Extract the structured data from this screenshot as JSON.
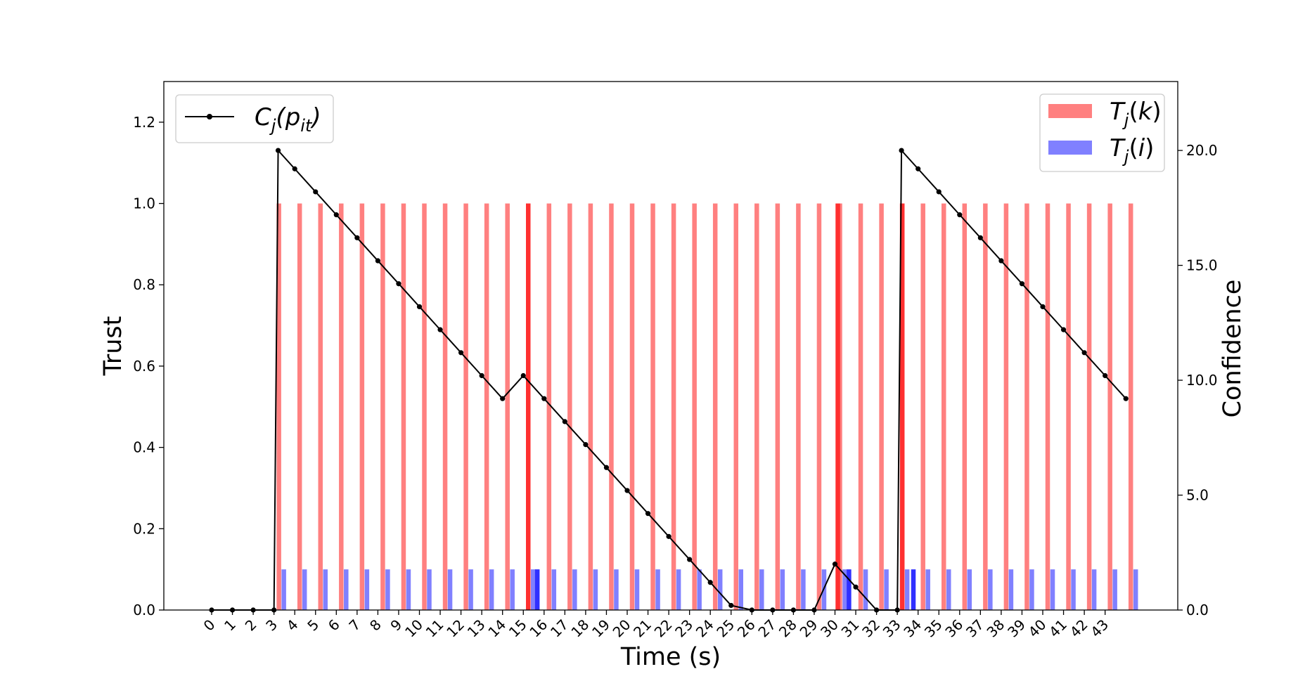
{
  "chart_data": {
    "type": "bar",
    "xlabel": "Time (s)",
    "ylabel": "Trust",
    "y2label": "Confidence",
    "ylim": [
      0,
      1.3
    ],
    "y2lim": [
      0,
      23.0
    ],
    "yticks": [
      "0.0",
      "0.2",
      "0.4",
      "0.6",
      "0.8",
      "1.0",
      "1.2"
    ],
    "y2ticks": [
      "0.0",
      "5.0",
      "10.0",
      "15.0",
      "20.0"
    ],
    "x_ticks": [
      "0",
      "1",
      "2",
      "3",
      "4",
      "5",
      "6",
      "7",
      "8",
      "9",
      "10",
      "11",
      "12",
      "13",
      "14",
      "15",
      "16",
      "17",
      "18",
      "19",
      "20",
      "21",
      "22",
      "23",
      "24",
      "25",
      "26",
      "27",
      "28",
      "29",
      "30",
      "31",
      "32",
      "33",
      "34",
      "35",
      "36",
      "37",
      "38",
      "39",
      "40",
      "41",
      "42",
      "43"
    ],
    "legend_left_placement": "top-left",
    "legend_right_placement": "top-right",
    "grid": false,
    "bar_series": [
      {
        "legend_label": "T_j(k)",
        "color": "#ff8080",
        "bar_at_tick": 3.25,
        "values": [
          0,
          0,
          0,
          1,
          1,
          1,
          1,
          1,
          1,
          1,
          1,
          1,
          1,
          1,
          1,
          1,
          1,
          1,
          1,
          1,
          1,
          1,
          1,
          1,
          1,
          1,
          1,
          1,
          1,
          1,
          1,
          1,
          1,
          1,
          1,
          1,
          1,
          1,
          1,
          1,
          1,
          1,
          1,
          1,
          1
        ]
      },
      {
        "legend_label": "T_j(i)",
        "color": "#8080ff",
        "values": [
          0,
          0,
          0,
          0.1,
          0.1,
          0.1,
          0.1,
          0.1,
          0.1,
          0.1,
          0.1,
          0.1,
          0.1,
          0.1,
          0.1,
          0.1,
          0.1,
          0.1,
          0.1,
          0.1,
          0.1,
          0.1,
          0.1,
          0.1,
          0.1,
          0.1,
          0.1,
          0.1,
          0.1,
          0.1,
          0.1,
          0.1,
          0.1,
          0.1,
          0.1,
          0.1,
          0.1,
          0.1,
          0.1,
          0.1,
          0.1,
          0.1,
          0.1,
          0.1,
          0.1
        ]
      }
    ],
    "highlight_extra": [
      {
        "color": "#ff3030",
        "x": 15.0,
        "value": 1.0
      },
      {
        "color": "#ff3030",
        "x": 29.9,
        "value": 1.0
      },
      {
        "color": "#ff3030",
        "x": 33.0,
        "value": 1.0
      },
      {
        "color": "#3030ff",
        "x": 15.2,
        "value": 0.1
      },
      {
        "color": "#3030ff",
        "x": 30.2,
        "value": 0.1
      },
      {
        "color": "#3030ff",
        "x": 33.3,
        "value": 0.1
      }
    ],
    "line_series": {
      "legend_label": "C_j(p_it)",
      "color": "#000000",
      "points": [
        [
          0,
          0
        ],
        [
          1,
          0
        ],
        [
          2,
          0
        ],
        [
          3,
          0
        ],
        [
          3.2,
          20.0
        ],
        [
          4,
          19.2
        ],
        [
          5,
          18.2
        ],
        [
          6,
          17.2
        ],
        [
          7,
          16.2
        ],
        [
          8,
          15.2
        ],
        [
          9,
          14.2
        ],
        [
          10,
          13.2
        ],
        [
          11,
          12.2
        ],
        [
          12,
          11.2
        ],
        [
          13,
          10.2
        ],
        [
          14,
          9.2
        ],
        [
          15,
          10.2
        ],
        [
          16,
          9.2
        ],
        [
          17,
          8.2
        ],
        [
          18,
          7.2
        ],
        [
          19,
          6.2
        ],
        [
          20,
          5.2
        ],
        [
          21,
          4.2
        ],
        [
          22,
          3.2
        ],
        [
          23,
          2.2
        ],
        [
          24,
          1.2
        ],
        [
          25,
          0.2
        ],
        [
          26,
          0
        ],
        [
          27,
          0
        ],
        [
          28,
          0
        ],
        [
          29,
          0
        ],
        [
          30,
          2.0
        ],
        [
          31,
          1.0
        ],
        [
          32,
          0
        ],
        [
          33,
          0
        ],
        [
          33.2,
          20.0
        ],
        [
          34,
          19.2
        ],
        [
          35,
          18.2
        ],
        [
          36,
          17.2
        ],
        [
          37,
          16.2
        ],
        [
          38,
          15.2
        ],
        [
          39,
          14.2
        ],
        [
          40,
          13.2
        ],
        [
          41,
          12.2
        ],
        [
          42,
          11.2
        ],
        [
          43,
          10.2
        ],
        [
          44,
          9.2
        ]
      ]
    }
  }
}
